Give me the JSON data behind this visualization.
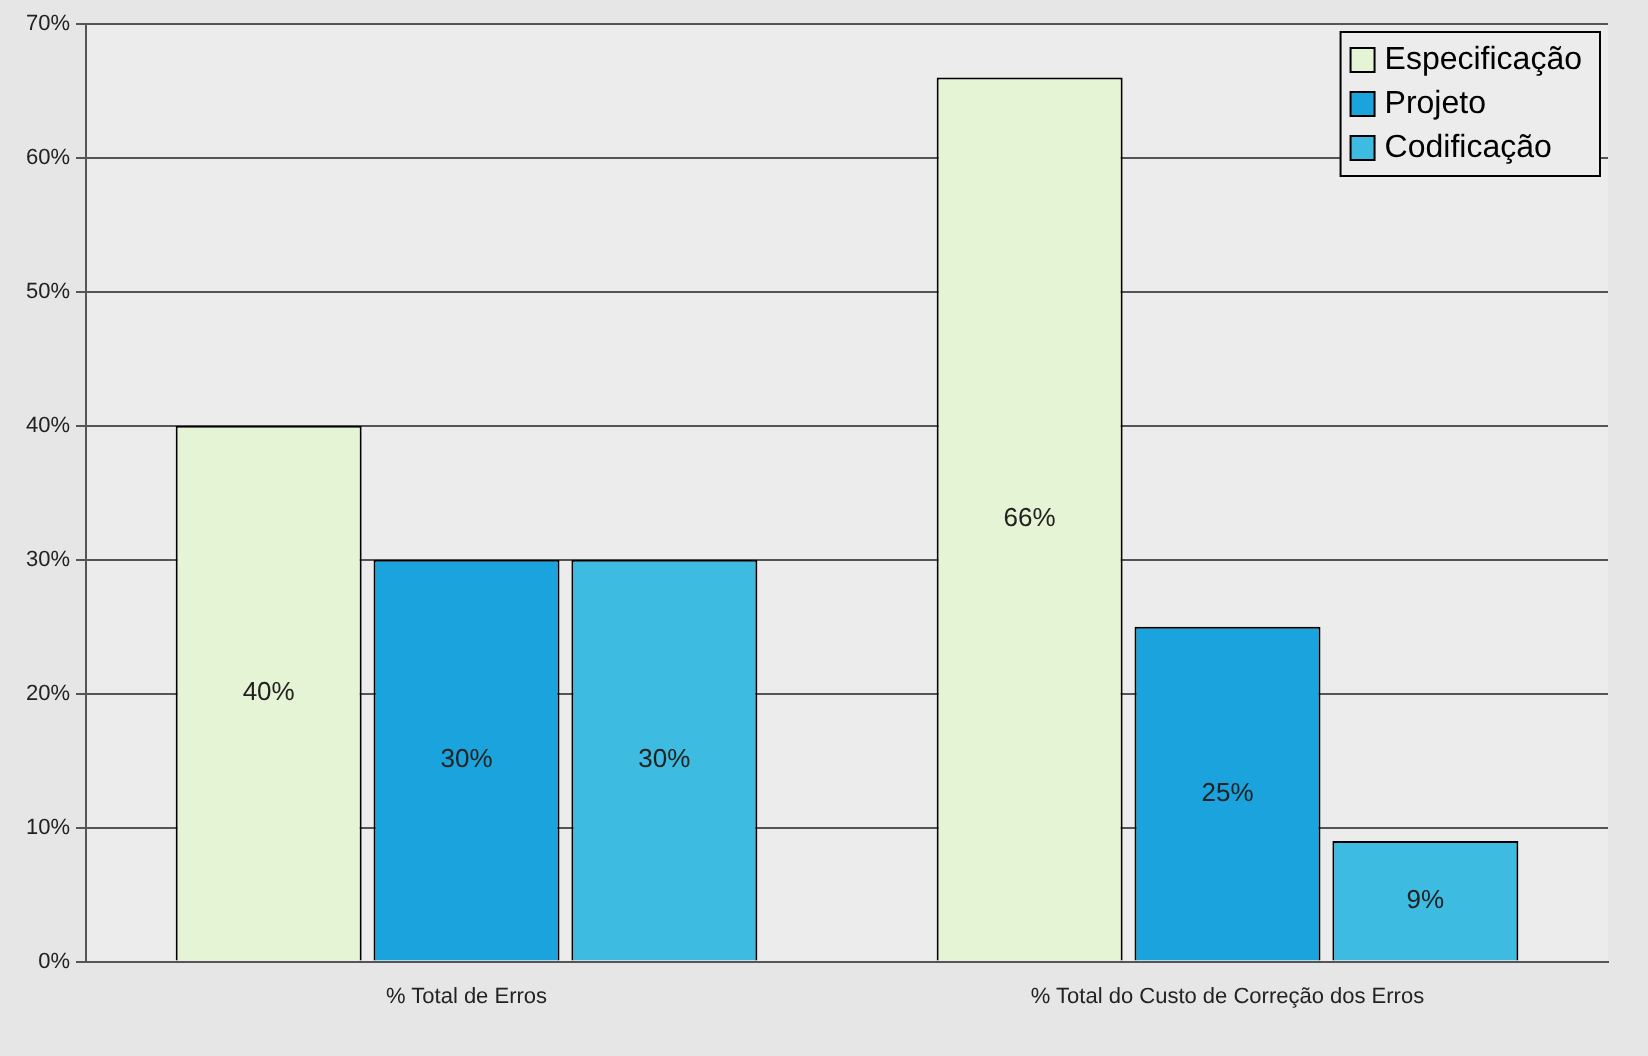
{
  "chart_data": {
    "type": "bar",
    "categories": [
      "% Total de Erros",
      "% Total do Custo de Correção dos Erros"
    ],
    "series": [
      {
        "name": "Especificação",
        "color": "#e4f4d4",
        "values": [
          40,
          66
        ],
        "value_labels": [
          "40%",
          "66%"
        ]
      },
      {
        "name": "Projeto",
        "color": "#1aa3dc",
        "values": [
          30,
          25
        ],
        "value_labels": [
          "30%",
          "25%"
        ]
      },
      {
        "name": "Codificação",
        "color": "#3dbbe0",
        "values": [
          30,
          9
        ],
        "value_labels": [
          "30%",
          "9%"
        ]
      }
    ],
    "ylim": [
      0,
      70
    ],
    "yticks": [
      {
        "value": 0,
        "label": "0%"
      },
      {
        "value": 10,
        "label": "10%"
      },
      {
        "value": 20,
        "label": "20%"
      },
      {
        "value": 30,
        "label": "30%"
      },
      {
        "value": 40,
        "label": "40%"
      },
      {
        "value": 50,
        "label": "50%"
      },
      {
        "value": 60,
        "label": "60%"
      },
      {
        "value": 70,
        "label": "70%"
      }
    ],
    "grid": "y",
    "legend": "top right"
  }
}
